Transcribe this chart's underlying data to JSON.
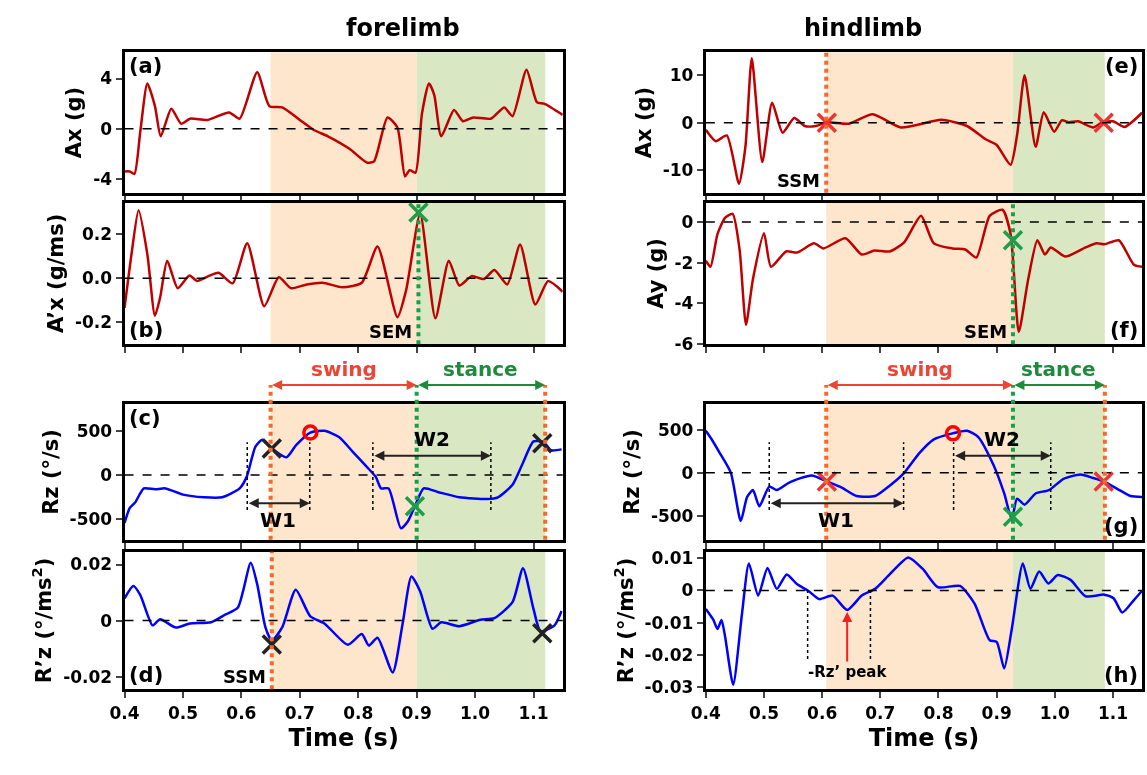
{
  "chart_data": [
    {
      "type": "line",
      "title": "forelimb",
      "ylabel": "Ax (g)",
      "annotations": [
        "(a)"
      ],
      "xlim": [
        0.4,
        1.15
      ],
      "xticks": [
        {
          "value": 0.4,
          "label": null
        },
        {
          "value": 0.5,
          "label": null
        },
        {
          "value": 0.6,
          "label": null
        },
        {
          "value": 0.7,
          "label": null
        },
        {
          "value": 0.8,
          "label": null
        },
        {
          "value": 0.9,
          "label": null
        },
        {
          "value": 1.0,
          "label": null
        },
        {
          "value": 1.1,
          "label": null
        }
      ],
      "ylim": [
        -5.1,
        6.1
      ],
      "yticks": [
        -4,
        0,
        4
      ],
      "tick_labels": "y",
      "grid": false,
      "line_style": "solid",
      "bands": [
        {
          "axis": "x",
          "from": 0.65,
          "to": 0.9,
          "color": "#fde6cc"
        },
        {
          "axis": "x",
          "from": 0.9,
          "to": 1.12,
          "color": "#d9e8c3"
        }
      ],
      "ref_lines": [
        {
          "axis": "y",
          "value": 0,
          "color": "#000000",
          "line_style": "dashed"
        }
      ],
      "series": [
        {
          "type": "line",
          "color": "#c00000",
          "x": [
            0.4,
            0.409,
            0.417,
            0.427,
            0.439,
            0.452,
            0.462,
            0.48,
            0.497,
            0.512,
            0.542,
            0.579,
            0.597,
            0.627,
            0.648,
            0.67,
            0.7,
            0.724,
            0.748,
            0.785,
            0.815,
            0.827,
            0.85,
            0.867,
            0.88,
            0.888,
            0.898,
            0.909,
            0.921,
            0.93,
            0.942,
            0.964,
            0.979,
            0.997,
            1.027,
            1.05,
            1.064,
            1.088,
            1.106,
            1.118,
            1.15
          ],
          "values": [
            -3.4,
            -3.4,
            -3.6,
            -0.2,
            3.6,
            1.8,
            -0.6,
            1.6,
            0.4,
            0.8,
            0.7,
            1.3,
            0.8,
            4.5,
            1.8,
            1.7,
            0.7,
            -0.1,
            -0.6,
            -1.6,
            -2.7,
            -2.6,
            0.9,
            0.1,
            -3.8,
            -3.3,
            -3.5,
            1.2,
            3.6,
            2.7,
            -0.6,
            1.5,
            0.6,
            0.9,
            0.8,
            1.7,
            1.0,
            4.7,
            2.1,
            2.0,
            1.1
          ]
        }
      ]
    },
    {
      "type": "line",
      "ylabel": "A’x (g/ms)",
      "annotations": [
        "(b)"
      ],
      "xlim": [
        0.4,
        1.15
      ],
      "xticks": [
        {
          "value": 0.4,
          "label": null
        },
        {
          "value": 0.5,
          "label": null
        },
        {
          "value": 0.6,
          "label": null
        },
        {
          "value": 0.7,
          "label": null
        },
        {
          "value": 0.8,
          "label": null
        },
        {
          "value": 0.9,
          "label": null
        },
        {
          "value": 1.0,
          "label": null
        },
        {
          "value": 1.1,
          "label": null
        }
      ],
      "ylim": [
        -0.3,
        0.345
      ],
      "yticks": [
        -0.2,
        {
          "value": 0,
          "label": "0.0"
        },
        0.2
      ],
      "tick_labels": "y",
      "grid": false,
      "line_style": "solid",
      "bands": [
        {
          "axis": "x",
          "from": 0.65,
          "to": 0.9,
          "color": "#fde6cc"
        },
        {
          "axis": "x",
          "from": 0.9,
          "to": 1.12,
          "color": "#d9e8c3"
        }
      ],
      "ref_lines": [
        {
          "axis": "y",
          "value": 0,
          "color": "#000000",
          "line_style": "dashed"
        },
        {
          "axis": "x",
          "value": 0.903,
          "label": "SEM",
          "color": "#1e9e48",
          "line_style": "dotted"
        }
      ],
      "series": [
        {
          "type": "line",
          "color": "#c00000",
          "x": [
            0.4,
            0.412,
            0.424,
            0.439,
            0.452,
            0.461,
            0.473,
            0.491,
            0.511,
            0.524,
            0.542,
            0.561,
            0.585,
            0.61,
            0.639,
            0.664,
            0.685,
            0.712,
            0.739,
            0.773,
            0.806,
            0.833,
            0.867,
            0.882,
            0.906,
            0.932,
            0.955,
            0.973,
            0.994,
            1.015,
            1.033,
            1.055,
            1.077,
            1.103,
            1.125,
            1.15
          ],
          "values": [
            -0.135,
            0.112,
            0.31,
            0.11,
            -0.17,
            -0.086,
            0.08,
            -0.045,
            0.013,
            -0.012,
            0.008,
            0.025,
            -0.023,
            0.16,
            -0.127,
            0.005,
            -0.045,
            -0.028,
            -0.02,
            -0.041,
            -0.02,
            0.145,
            -0.177,
            -0.053,
            0.294,
            -0.182,
            0.08,
            -0.033,
            0.01,
            -0.003,
            0.038,
            -0.028,
            0.154,
            -0.119,
            -0.012,
            -0.061
          ]
        },
        {
          "type": "scatter",
          "marker": "cross",
          "color": "#1e9e48",
          "x": [
            0.903
          ],
          "values": [
            0.3
          ]
        }
      ]
    },
    {
      "type": "line",
      "ylabel": "Rz (°/s)",
      "annotations": [
        "(c)"
      ],
      "xlim": [
        0.4,
        1.15
      ],
      "xticks": [
        {
          "value": 0.4,
          "label": null
        },
        {
          "value": 0.5,
          "label": null
        },
        {
          "value": 0.6,
          "label": null
        },
        {
          "value": 0.7,
          "label": null
        },
        {
          "value": 0.8,
          "label": null
        },
        {
          "value": 0.9,
          "label": null
        },
        {
          "value": 1.0,
          "label": null
        },
        {
          "value": 1.1,
          "label": null
        }
      ],
      "ylim": [
        -730,
        800
      ],
      "yticks": [
        -500,
        0,
        500
      ],
      "tick_labels": "y",
      "grid": false,
      "line_style": "solid",
      "bands": [
        {
          "axis": "x",
          "from": 0.65,
          "to": 0.9,
          "color": "#fde6cc",
          "label": "swing"
        },
        {
          "axis": "x",
          "from": 0.9,
          "to": 1.12,
          "color": "#d9e8c3",
          "label": "stance"
        }
      ],
      "ref_lines": [
        {
          "axis": "y",
          "value": 0,
          "color": "#000000",
          "line_style": "dashed"
        },
        {
          "axis": "x",
          "value": 0.65,
          "color": "#f26b2a",
          "line_style": "dotted"
        },
        {
          "axis": "x",
          "value": 0.9,
          "color": "#1e9e48",
          "line_style": "dotted"
        },
        {
          "axis": "x",
          "value": 1.12,
          "color": "#f26b2a",
          "line_style": "dotted"
        },
        {
          "axis": "x",
          "value": 0.61,
          "label": "W1",
          "line_style": "dotted"
        },
        {
          "axis": "x",
          "value": 0.717,
          "line_style": "dotted"
        },
        {
          "axis": "x",
          "value": 0.825,
          "label": "W2",
          "line_style": "dotted"
        },
        {
          "axis": "x",
          "value": 1.027,
          "line_style": "dotted"
        }
      ],
      "series": [
        {
          "type": "line",
          "color": "#0000ff",
          "x": [
            0.4,
            0.409,
            0.418,
            0.433,
            0.452,
            0.47,
            0.5,
            0.536,
            0.567,
            0.597,
            0.609,
            0.624,
            0.636,
            0.652,
            0.677,
            0.694,
            0.718,
            0.742,
            0.767,
            0.791,
            0.815,
            0.83,
            0.839,
            0.852,
            0.873,
            0.885,
            0.897,
            0.912,
            0.936,
            0.973,
            1.021,
            1.039,
            1.064,
            1.082,
            1.1,
            1.118,
            1.13,
            1.148
          ],
          "values": [
            -540,
            -370,
            -310,
            -150,
            -160,
            -150,
            -220,
            -250,
            -250,
            -150,
            -20,
            320,
            400,
            300,
            200,
            340,
            480,
            500,
            430,
            260,
            90,
            -20,
            -150,
            -150,
            -600,
            -520,
            -350,
            -150,
            -190,
            -250,
            -270,
            -250,
            -110,
            140,
            380,
            370,
            280,
            290
          ]
        },
        {
          "type": "scatter",
          "marker": "cross",
          "color": "#222222",
          "x": [
            0.652,
            1.115
          ],
          "values": [
            300,
            360
          ]
        },
        {
          "type": "scatter",
          "marker": "cross",
          "color": "#1e9e48",
          "x": [
            0.897
          ],
          "values": [
            -350
          ]
        },
        {
          "type": "scatter",
          "marker": "circle",
          "color": "#ff0000",
          "x": [
            0.718
          ],
          "values": [
            480
          ]
        }
      ]
    },
    {
      "type": "line",
      "ylabel": "R’z (°/ms$^{2}$)",
      "xlabel": "Time (s)",
      "annotations": [
        "(d)"
      ],
      "xlim": [
        0.4,
        1.15
      ],
      "xticks": [
        0.4,
        0.5,
        0.6,
        0.7,
        0.8,
        0.9,
        {
          "value": 1.0,
          "label": "1.0"
        },
        1.1
      ],
      "ylim": [
        -0.0245,
        0.0246
      ],
      "yticks": [
        -0.02,
        0,
        0.02
      ],
      "grid": false,
      "line_style": "solid",
      "bands": [
        {
          "axis": "x",
          "from": 0.65,
          "to": 0.9,
          "color": "#fde6cc"
        },
        {
          "axis": "x",
          "from": 0.9,
          "to": 1.12,
          "color": "#d9e8c3"
        }
      ],
      "ref_lines": [
        {
          "axis": "y",
          "value": 0,
          "color": "#000000",
          "line_style": "dashed"
        },
        {
          "axis": "x",
          "value": 0.652,
          "label": "SSM",
          "color": "#f26b2a",
          "line_style": "dotted"
        }
      ],
      "series": [
        {
          "type": "line",
          "color": "#0000ff",
          "x": [
            0.4,
            0.415,
            0.427,
            0.448,
            0.461,
            0.488,
            0.512,
            0.548,
            0.573,
            0.594,
            0.616,
            0.627,
            0.641,
            0.652,
            0.67,
            0.693,
            0.718,
            0.742,
            0.782,
            0.806,
            0.818,
            0.833,
            0.859,
            0.876,
            0.891,
            0.906,
            0.927,
            0.942,
            0.973,
            1.009,
            1.033,
            1.064,
            1.082,
            1.1,
            1.112,
            1.136,
            1.148
          ],
          "values": [
            0.0079,
            0.0123,
            0.0091,
            -0.0017,
            0.0005,
            -0.0025,
            -0.001,
            -0.0006,
            0.0022,
            0.0047,
            0.0206,
            0.013,
            -0.0023,
            -0.0071,
            -0.0023,
            0.011,
            0.0015,
            -0.001,
            -0.0086,
            -0.0048,
            -0.0089,
            -0.0061,
            -0.0185,
            -0.001,
            0.0157,
            0.0104,
            -0.0029,
            -0.0006,
            -0.002,
            0.0003,
            0.0009,
            0.0066,
            0.0187,
            0.0041,
            -0.0038,
            -0.0017,
            0.0034
          ]
        },
        {
          "type": "scatter",
          "marker": "cross",
          "color": "#222222",
          "x": [
            0.652,
            1.115
          ],
          "values": [
            -0.0085,
            -0.0045
          ]
        }
      ]
    },
    {
      "type": "line",
      "title": "hindlimb",
      "ylabel": "Ax (g)",
      "annotations": [
        "(e)"
      ],
      "xlim": [
        0.4,
        1.15
      ],
      "xticks": [
        {
          "value": 0.4,
          "label": null
        },
        {
          "value": 0.5,
          "label": null
        },
        {
          "value": 0.6,
          "label": null
        },
        {
          "value": 0.7,
          "label": null
        },
        {
          "value": 0.8,
          "label": null
        },
        {
          "value": 0.9,
          "label": null
        },
        {
          "value": 1.0,
          "label": null
        },
        {
          "value": 1.1,
          "label": null
        }
      ],
      "ylim": [
        -14.8,
        14.9
      ],
      "yticks": [
        -10,
        0,
        10
      ],
      "tick_labels": "y",
      "grid": false,
      "line_style": "solid",
      "bands": [
        {
          "axis": "x",
          "from": 0.607,
          "to": 0.928,
          "color": "#fde6cc"
        },
        {
          "axis": "x",
          "from": 0.928,
          "to": 1.086,
          "color": "#d9e8c3"
        }
      ],
      "ref_lines": [
        {
          "axis": "y",
          "value": 0,
          "color": "#000000",
          "line_style": "dashed"
        },
        {
          "axis": "x",
          "value": 0.607,
          "label": "SSM",
          "color": "#f26b2a",
          "line_style": "dotted"
        }
      ],
      "series": [
        {
          "type": "line",
          "color": "#c00000",
          "x": [
            0.4,
            0.417,
            0.436,
            0.457,
            0.468,
            0.479,
            0.497,
            0.514,
            0.532,
            0.552,
            0.57,
            0.589,
            0.608,
            0.646,
            0.687,
            0.735,
            0.805,
            0.849,
            0.881,
            0.9,
            0.924,
            0.935,
            0.948,
            0.967,
            0.981,
            0.999,
            1.012,
            1.024,
            1.04,
            1.066,
            1.082,
            1.1,
            1.12,
            1.15
          ],
          "values": [
            -1.5,
            -3.9,
            -2.7,
            -12.9,
            -5.1,
            13.6,
            -8.3,
            4.2,
            -2.1,
            1.0,
            -0.7,
            -0.7,
            0.1,
            -0.2,
            1.8,
            -1.0,
            0.6,
            -0.7,
            -3.5,
            -4.7,
            -8.9,
            -2.7,
            10.0,
            -5.1,
            2.2,
            -1.9,
            0.5,
            0.1,
            0.3,
            -1.0,
            0.1,
            0.3,
            -0.9,
            2.1
          ]
        },
        {
          "type": "scatter",
          "marker": "cross",
          "color": "#ee3333",
          "x": [
            0.608,
            1.084
          ],
          "values": [
            0,
            0
          ]
        }
      ]
    },
    {
      "type": "line",
      "ylabel": "Ay (g)",
      "annotations": [
        "(f)"
      ],
      "xlim": [
        0.4,
        1.15
      ],
      "xticks": [
        {
          "value": 0.4,
          "label": null
        },
        {
          "value": 0.5,
          "label": null
        },
        {
          "value": 0.6,
          "label": null
        },
        {
          "value": 0.7,
          "label": null
        },
        {
          "value": 0.8,
          "label": null
        },
        {
          "value": 0.9,
          "label": null
        },
        {
          "value": 1.0,
          "label": null
        },
        {
          "value": 1.1,
          "label": null
        }
      ],
      "ylim": [
        -6,
        0.95
      ],
      "yticks": [
        -6,
        -4,
        -2,
        0
      ],
      "tick_labels": "y",
      "grid": false,
      "line_style": "solid",
      "bands": [
        {
          "axis": "x",
          "from": 0.607,
          "to": 0.928,
          "color": "#fde6cc"
        },
        {
          "axis": "x",
          "from": 0.928,
          "to": 1.086,
          "color": "#d9e8c3"
        }
      ],
      "ref_lines": [
        {
          "axis": "y",
          "value": 0,
          "color": "#000000",
          "line_style": "dashed"
        },
        {
          "axis": "x",
          "value": 0.928,
          "label": "SEM",
          "color": "#1e9e48",
          "line_style": "dotted"
        }
      ],
      "series": [
        {
          "type": "line",
          "color": "#c00000",
          "x": [
            0.4,
            0.408,
            0.42,
            0.433,
            0.446,
            0.458,
            0.469,
            0.481,
            0.5,
            0.512,
            0.538,
            0.557,
            0.586,
            0.602,
            0.64,
            0.668,
            0.69,
            0.716,
            0.741,
            0.77,
            0.792,
            0.824,
            0.846,
            0.865,
            0.888,
            0.91,
            0.924,
            0.938,
            0.954,
            0.97,
            0.983,
            0.993,
            1.018,
            1.053,
            1.072,
            1.085,
            1.11,
            1.136,
            1.15
          ],
          "values": [
            -1.9,
            -2.2,
            -0.6,
            0.2,
            0.4,
            -1.35,
            -5.05,
            -2.8,
            -0.55,
            -2.2,
            -1.45,
            -1.5,
            -1.05,
            -1.3,
            -0.8,
            -1.6,
            -1.4,
            -1.45,
            -1.0,
            0.3,
            -1.05,
            -1.3,
            -1.35,
            -1.75,
            0.3,
            0.6,
            -0.6,
            -5.4,
            -2.85,
            -0.9,
            -1.6,
            -1.25,
            -1.7,
            -1.25,
            -1.05,
            -1.1,
            -0.9,
            -2.1,
            -2.2
          ]
        },
        {
          "type": "scatter",
          "marker": "cross",
          "color": "#1e9e48",
          "x": [
            0.928
          ],
          "values": [
            -0.9
          ]
        }
      ]
    },
    {
      "type": "line",
      "ylabel": "Rz (°/s)",
      "annotations": [
        "(g)"
      ],
      "xlim": [
        0.4,
        1.15
      ],
      "xticks": [
        {
          "value": 0.4,
          "label": null
        },
        {
          "value": 0.5,
          "label": null
        },
        {
          "value": 0.6,
          "label": null
        },
        {
          "value": 0.7,
          "label": null
        },
        {
          "value": 0.8,
          "label": null
        },
        {
          "value": 0.9,
          "label": null
        },
        {
          "value": 1.0,
          "label": null
        },
        {
          "value": 1.1,
          "label": null
        }
      ],
      "ylim": [
        -780,
        800
      ],
      "yticks": [
        -500,
        0,
        500
      ],
      "tick_labels": "y",
      "grid": false,
      "line_style": "solid",
      "bands": [
        {
          "axis": "x",
          "from": 0.607,
          "to": 0.928,
          "color": "#fde6cc",
          "label": "swing"
        },
        {
          "axis": "x",
          "from": 0.928,
          "to": 1.086,
          "color": "#d9e8c3",
          "label": "stance"
        }
      ],
      "ref_lines": [
        {
          "axis": "y",
          "value": 0,
          "color": "#000000",
          "line_style": "dashed"
        },
        {
          "axis": "x",
          "value": 0.607,
          "color": "#f26b2a",
          "line_style": "dotted"
        },
        {
          "axis": "x",
          "value": 0.928,
          "color": "#1e9e48",
          "line_style": "dotted"
        },
        {
          "axis": "x",
          "value": 1.086,
          "color": "#f26b2a",
          "line_style": "dotted"
        },
        {
          "axis": "x",
          "value": 0.509,
          "label": "W1",
          "line_style": "dotted"
        },
        {
          "axis": "x",
          "value": 0.74,
          "line_style": "dotted"
        },
        {
          "axis": "x",
          "value": 0.826,
          "label": "W2",
          "line_style": "dotted"
        },
        {
          "axis": "x",
          "value": 0.993,
          "line_style": "dotted"
        }
      ],
      "series": [
        {
          "type": "line",
          "color": "#0000ff",
          "x": [
            0.4,
            0.411,
            0.424,
            0.443,
            0.46,
            0.471,
            0.481,
            0.492,
            0.509,
            0.522,
            0.544,
            0.582,
            0.608,
            0.633,
            0.659,
            0.691,
            0.716,
            0.741,
            0.767,
            0.792,
            0.824,
            0.849,
            0.868,
            0.894,
            0.913,
            0.926,
            0.935,
            0.948,
            0.967,
            0.99,
            1.015,
            1.044,
            1.066,
            1.084,
            1.111,
            1.13,
            1.15
          ],
          "values": [
            490,
            380,
            230,
            0,
            -560,
            -280,
            -200,
            -390,
            -160,
            -200,
            -110,
            -30,
            -100,
            -170,
            -270,
            -270,
            -150,
            0,
            230,
            390,
            460,
            490,
            420,
            100,
            -240,
            -540,
            -300,
            -370,
            -240,
            -200,
            -70,
            -20,
            -60,
            -100,
            -200,
            -270,
            -280
          ]
        },
        {
          "type": "scatter",
          "marker": "cross",
          "color": "#ee3333",
          "x": [
            0.608,
            1.084
          ],
          "values": [
            -100,
            -100
          ]
        },
        {
          "type": "scatter",
          "marker": "cross",
          "color": "#1e9e48",
          "x": [
            0.928
          ],
          "values": [
            -510
          ]
        },
        {
          "type": "scatter",
          "marker": "circle",
          "color": "#ff0000",
          "x": [
            0.825
          ],
          "values": [
            460
          ]
        }
      ]
    },
    {
      "type": "line",
      "ylabel": "R’z (°/ms$^{2}$)",
      "xlabel": "Time (s)",
      "annotations": [
        "(h)",
        {
          "text": "-Rz’ peak",
          "x": 0.643,
          "y": -0.0061
        }
      ],
      "xlim": [
        0.4,
        1.15
      ],
      "xticks": [
        0.4,
        0.5,
        0.6,
        0.7,
        0.8,
        0.9,
        {
          "value": 1.0,
          "label": "1.0"
        },
        1.1
      ],
      "ylim": [
        -0.0308,
        0.0121
      ],
      "yticks": [
        -0.03,
        -0.02,
        -0.01,
        0,
        0.01
      ],
      "grid": false,
      "line_style": "solid",
      "bands": [
        {
          "axis": "x",
          "from": 0.607,
          "to": 0.928,
          "color": "#fde6cc"
        },
        {
          "axis": "x",
          "from": 0.928,
          "to": 1.086,
          "color": "#d9e8c3"
        }
      ],
      "ref_lines": [
        {
          "axis": "y",
          "value": 0,
          "color": "#000000",
          "line_style": "dashed"
        },
        {
          "axis": "x",
          "value": 0.575,
          "line_style": "dotted"
        },
        {
          "axis": "x",
          "value": 0.683,
          "line_style": "dotted"
        }
      ],
      "series": [
        {
          "type": "line",
          "color": "#0000ff",
          "x": [
            0.4,
            0.413,
            0.42,
            0.427,
            0.433,
            0.447,
            0.462,
            0.474,
            0.49,
            0.506,
            0.522,
            0.539,
            0.557,
            0.576,
            0.595,
            0.618,
            0.643,
            0.668,
            0.691,
            0.716,
            0.748,
            0.773,
            0.799,
            0.837,
            0.862,
            0.888,
            0.9,
            0.913,
            0.926,
            0.945,
            0.958,
            0.973,
            0.989,
            1.005,
            1.027,
            1.053,
            1.085,
            1.101,
            1.116,
            1.136,
            1.15
          ],
          "values": [
            -0.0058,
            -0.0092,
            -0.012,
            -0.0092,
            -0.0143,
            -0.0294,
            -0.0075,
            0.0084,
            -0.0016,
            0.007,
            0.0005,
            0.005,
            0.0019,
            -0.0001,
            -0.0027,
            -0.0016,
            -0.0061,
            -0.0016,
            0.0005,
            0.005,
            0.0103,
            0.0067,
            0.001,
            0.0014,
            -0.0041,
            -0.0155,
            -0.016,
            -0.0243,
            -0.012,
            0.0084,
            0.0005,
            0.0059,
            0.0022,
            0.0048,
            0.0033,
            -0.0018,
            -0.0013,
            -0.0024,
            -0.0069,
            -0.003,
            -0.0001
          ]
        }
      ]
    }
  ]
}
